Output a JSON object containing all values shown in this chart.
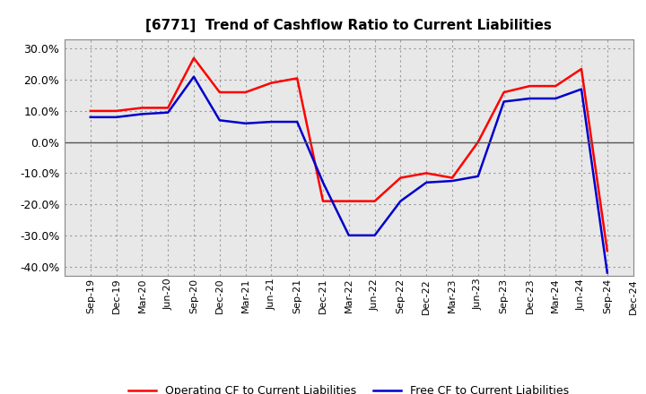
{
  "title": "[6771]  Trend of Cashflow Ratio to Current Liabilities",
  "x_labels": [
    "Sep-19",
    "Dec-19",
    "Mar-20",
    "Jun-20",
    "Sep-20",
    "Dec-20",
    "Mar-21",
    "Jun-21",
    "Sep-21",
    "Dec-21",
    "Mar-22",
    "Jun-22",
    "Sep-22",
    "Dec-22",
    "Mar-23",
    "Jun-23",
    "Sep-23",
    "Dec-23",
    "Mar-24",
    "Jun-24",
    "Sep-24",
    "Dec-24"
  ],
  "operating_cf": [
    10.0,
    10.0,
    11.0,
    11.0,
    27.0,
    16.0,
    16.0,
    19.0,
    20.5,
    -19.0,
    -19.0,
    -19.0,
    -11.5,
    -10.0,
    -11.5,
    0.0,
    16.0,
    18.0,
    18.0,
    23.5,
    -35.0,
    null
  ],
  "free_cf": [
    8.0,
    8.0,
    9.0,
    9.5,
    21.0,
    7.0,
    6.0,
    6.5,
    6.5,
    -13.0,
    -30.0,
    -30.0,
    -19.0,
    -13.0,
    -12.5,
    -11.0,
    13.0,
    14.0,
    14.0,
    17.0,
    -42.0,
    null
  ],
  "operating_color": "#ff0000",
  "free_color": "#0000cc",
  "ylim": [
    -43,
    33
  ],
  "yticks": [
    -40.0,
    -30.0,
    -20.0,
    -10.0,
    0.0,
    10.0,
    20.0,
    30.0
  ],
  "background_color": "#ffffff",
  "plot_bg_color": "#e8e8e8",
  "grid_color": "#999999",
  "legend_labels": [
    "Operating CF to Current Liabilities",
    "Free CF to Current Liabilities"
  ]
}
